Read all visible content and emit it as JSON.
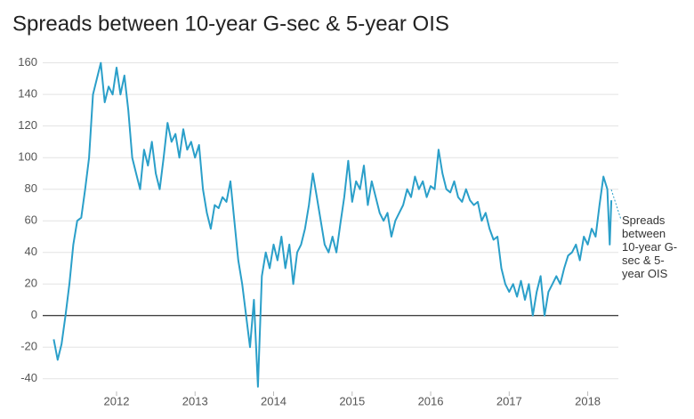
{
  "chart_data": {
    "type": "line",
    "title": "Spreads between 10-year G-sec & 5-year OIS",
    "x": [
      2011.2,
      2011.25,
      2011.3,
      2011.35,
      2011.4,
      2011.45,
      2011.5,
      2011.55,
      2011.6,
      2011.65,
      2011.7,
      2011.75,
      2011.8,
      2011.85,
      2011.9,
      2011.95,
      2012.0,
      2012.05,
      2012.1,
      2012.15,
      2012.2,
      2012.25,
      2012.3,
      2012.35,
      2012.4,
      2012.45,
      2012.5,
      2012.55,
      2012.6,
      2012.65,
      2012.7,
      2012.75,
      2012.8,
      2012.85,
      2012.9,
      2012.95,
      2013.0,
      2013.05,
      2013.1,
      2013.15,
      2013.2,
      2013.25,
      2013.3,
      2013.35,
      2013.4,
      2013.45,
      2013.5,
      2013.55,
      2013.6,
      2013.65,
      2013.7,
      2013.75,
      2013.8,
      2013.85,
      2013.9,
      2013.95,
      2014.0,
      2014.05,
      2014.1,
      2014.15,
      2014.2,
      2014.25,
      2014.3,
      2014.35,
      2014.4,
      2014.45,
      2014.5,
      2014.55,
      2014.6,
      2014.65,
      2014.7,
      2014.75,
      2014.8,
      2014.85,
      2014.9,
      2014.95,
      2015.0,
      2015.05,
      2015.1,
      2015.15,
      2015.2,
      2015.25,
      2015.3,
      2015.35,
      2015.4,
      2015.45,
      2015.5,
      2015.55,
      2015.6,
      2015.65,
      2015.7,
      2015.75,
      2015.8,
      2015.85,
      2015.9,
      2015.95,
      2016.0,
      2016.05,
      2016.1,
      2016.15,
      2016.2,
      2016.25,
      2016.3,
      2016.35,
      2016.4,
      2016.45,
      2016.5,
      2016.55,
      2016.6,
      2016.65,
      2016.7,
      2016.75,
      2016.8,
      2016.85,
      2016.9,
      2016.95,
      2017.0,
      2017.05,
      2017.1,
      2017.15,
      2017.2,
      2017.25,
      2017.3,
      2017.35,
      2017.4,
      2017.45,
      2017.5,
      2017.55,
      2017.6,
      2017.65,
      2017.7,
      2017.75,
      2017.8,
      2017.85,
      2017.9,
      2017.95,
      2018.0,
      2018.05,
      2018.1,
      2018.15,
      2018.2,
      2018.25,
      2018.28,
      2018.3
    ],
    "series": [
      {
        "name": "Spreads between 10-year G-sec & 5-year OIS",
        "color": "#2a9fc9",
        "values": [
          -15,
          -28,
          -18,
          0,
          20,
          45,
          60,
          62,
          80,
          100,
          140,
          150,
          160,
          135,
          145,
          140,
          157,
          140,
          152,
          130,
          100,
          90,
          80,
          105,
          95,
          110,
          90,
          80,
          100,
          122,
          110,
          115,
          100,
          118,
          105,
          110,
          100,
          108,
          80,
          65,
          55,
          70,
          68,
          75,
          72,
          85,
          60,
          35,
          20,
          0,
          -20,
          10,
          -45,
          25,
          40,
          30,
          45,
          35,
          50,
          30,
          45,
          20,
          40,
          45,
          55,
          70,
          90,
          75,
          60,
          45,
          40,
          50,
          40,
          58,
          75,
          98,
          72,
          85,
          80,
          95,
          70,
          85,
          75,
          65,
          60,
          65,
          50,
          60,
          65,
          70,
          80,
          75,
          88,
          80,
          85,
          75,
          82,
          80,
          105,
          90,
          80,
          78,
          85,
          75,
          72,
          80,
          73,
          70,
          72,
          60,
          65,
          55,
          48,
          50,
          30,
          20,
          15,
          20,
          12,
          22,
          10,
          20,
          0,
          15,
          25,
          0,
          15,
          20,
          25,
          20,
          30,
          38,
          40,
          45,
          35,
          50,
          45,
          55,
          50,
          70,
          88,
          80,
          45,
          73
        ]
      }
    ],
    "xlim": [
      2011.06,
      2018.39
    ],
    "xticks": [
      2012,
      2013,
      2014,
      2015,
      2016,
      2017,
      2018
    ],
    "ylim": [
      -48,
      166
    ],
    "yticks": [
      -40,
      -20,
      0,
      20,
      40,
      60,
      80,
      100,
      120,
      140,
      160
    ],
    "grid": true
  }
}
